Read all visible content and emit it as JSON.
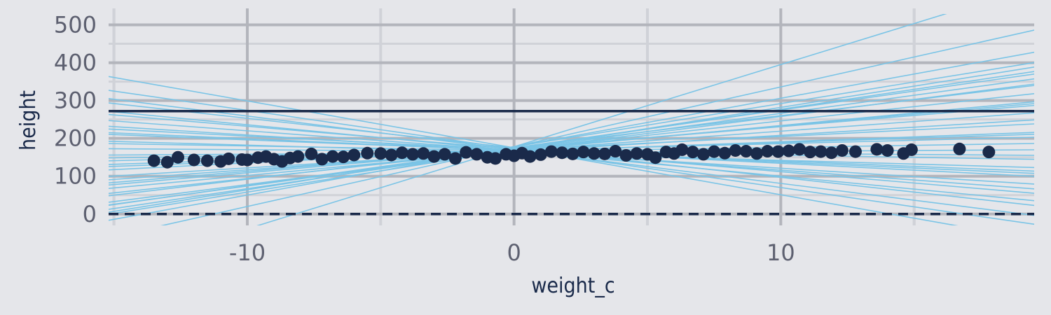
{
  "chart_data": {
    "type": "scatter",
    "title": "",
    "xlabel": "weight_c",
    "ylabel": "height",
    "xlim": [
      -15.2,
      19.5
    ],
    "ylim": [
      -30,
      525
    ],
    "x_ticks": [
      -10,
      0,
      10
    ],
    "y_ticks": [
      0,
      100,
      200,
      300,
      400,
      500
    ],
    "grid": true,
    "colors": {
      "background": "#e5e6ea",
      "grid_major": "#b3b5bc",
      "grid_minor": "#d0d2d8",
      "points": "#1a2a4a",
      "prior_lines": "#7ac4e6",
      "reference_lines": "#1a2a4a"
    },
    "reference_lines": [
      {
        "y": 272,
        "style": "solid"
      },
      {
        "y": 0,
        "style": "dashed"
      }
    ],
    "prior_lines": [
      {
        "a": 178,
        "b": 21.7
      },
      {
        "a": 178,
        "b": 15.8
      },
      {
        "a": 178,
        "b": 12.8
      },
      {
        "a": 178,
        "b": 11.4
      },
      {
        "a": 170,
        "b": 11.2
      },
      {
        "a": 172,
        "b": 10.5
      },
      {
        "a": 175,
        "b": 10.0
      },
      {
        "a": 170,
        "b": 9.6
      },
      {
        "a": 168,
        "b": 9.0
      },
      {
        "a": 176,
        "b": 8.4
      },
      {
        "a": 170,
        "b": 7.6
      },
      {
        "a": 168,
        "b": 6.6
      },
      {
        "a": 172,
        "b": 5.9
      },
      {
        "a": 168,
        "b": 5.1
      },
      {
        "a": 165,
        "b": 4.3
      },
      {
        "a": 170,
        "b": 3.5
      },
      {
        "a": 165,
        "b": 2.6
      },
      {
        "a": 168,
        "b": 1.8
      },
      {
        "a": 165,
        "b": 1.1
      },
      {
        "a": 162,
        "b": 0.4
      },
      {
        "a": 165,
        "b": -0.5
      },
      {
        "a": 168,
        "b": -1.2
      },
      {
        "a": 162,
        "b": -2.0
      },
      {
        "a": 168,
        "b": -2.8
      },
      {
        "a": 170,
        "b": -3.6
      },
      {
        "a": 165,
        "b": -4.4
      },
      {
        "a": 168,
        "b": -5.2
      },
      {
        "a": 172,
        "b": -6.0
      },
      {
        "a": 168,
        "b": -6.8
      },
      {
        "a": 175,
        "b": -7.8
      },
      {
        "a": 170,
        "b": -8.9
      },
      {
        "a": 172,
        "b": -10.2
      },
      {
        "a": 175,
        "b": -12.4
      },
      {
        "a": 168,
        "b": -3.1
      },
      {
        "a": 166,
        "b": 2.3
      },
      {
        "a": 171,
        "b": 6.2
      }
    ],
    "points": [
      [
        -13.5,
        141
      ],
      [
        -13.0,
        137
      ],
      [
        -12.6,
        150
      ],
      [
        -12.0,
        143
      ],
      [
        -11.5,
        141
      ],
      [
        -11.0,
        139
      ],
      [
        -10.7,
        146
      ],
      [
        -10.2,
        144
      ],
      [
        -10.0,
        143
      ],
      [
        -9.6,
        149
      ],
      [
        -9.3,
        152
      ],
      [
        -9.0,
        145
      ],
      [
        -8.7,
        139
      ],
      [
        -8.4,
        148
      ],
      [
        -8.1,
        152
      ],
      [
        -7.6,
        159
      ],
      [
        -7.2,
        145
      ],
      [
        -6.8,
        152
      ],
      [
        -6.4,
        151
      ],
      [
        -6.0,
        156
      ],
      [
        -5.5,
        161
      ],
      [
        -5.0,
        160
      ],
      [
        -4.6,
        156
      ],
      [
        -4.2,
        162
      ],
      [
        -3.8,
        158
      ],
      [
        -3.4,
        160
      ],
      [
        -3.0,
        152
      ],
      [
        -2.6,
        158
      ],
      [
        -2.2,
        147
      ],
      [
        -1.8,
        163
      ],
      [
        -1.4,
        158
      ],
      [
        -1.0,
        150
      ],
      [
        -0.7,
        147
      ],
      [
        -0.3,
        158
      ],
      [
        0.0,
        154
      ],
      [
        0.3,
        161
      ],
      [
        0.6,
        152
      ],
      [
        1.0,
        157
      ],
      [
        1.4,
        165
      ],
      [
        1.8,
        162
      ],
      [
        2.2,
        159
      ],
      [
        2.6,
        164
      ],
      [
        3.0,
        160
      ],
      [
        3.4,
        159
      ],
      [
        3.8,
        166
      ],
      [
        4.2,
        155
      ],
      [
        4.6,
        160
      ],
      [
        5.0,
        158
      ],
      [
        5.3,
        149
      ],
      [
        5.7,
        164
      ],
      [
        6.0,
        160
      ],
      [
        6.3,
        170
      ],
      [
        6.7,
        164
      ],
      [
        7.1,
        158
      ],
      [
        7.5,
        165
      ],
      [
        7.9,
        161
      ],
      [
        8.3,
        168
      ],
      [
        8.7,
        166
      ],
      [
        9.1,
        160
      ],
      [
        9.5,
        166
      ],
      [
        9.9,
        165
      ],
      [
        10.3,
        167
      ],
      [
        10.7,
        171
      ],
      [
        11.1,
        164
      ],
      [
        11.5,
        165
      ],
      [
        11.9,
        162
      ],
      [
        12.3,
        168
      ],
      [
        12.8,
        165
      ],
      [
        13.6,
        171
      ],
      [
        14.0,
        168
      ],
      [
        14.6,
        160
      ],
      [
        14.9,
        170
      ],
      [
        16.7,
        172
      ],
      [
        17.8,
        164
      ]
    ]
  }
}
